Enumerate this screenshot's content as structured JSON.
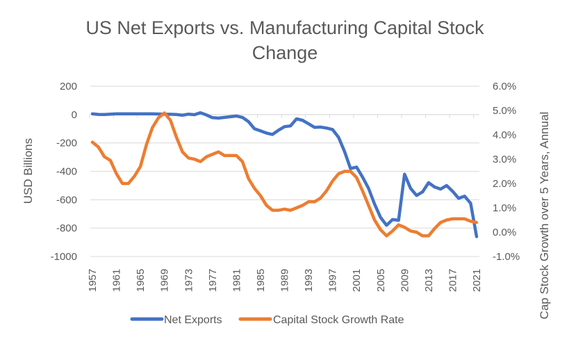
{
  "chart_data": {
    "type": "line",
    "title": [
      "US Net Exports vs. Manufacturing Capital Stock",
      "Change"
    ],
    "xlabel": "",
    "ylabel": "USD Billions",
    "y2label": "Cap Stock Growth over 5 Years, Annual",
    "ylim": [
      -1000,
      200
    ],
    "y2lim": [
      -1.0,
      6.0
    ],
    "yticks": [
      "200",
      "0",
      "-200",
      "-400",
      "-600",
      "-800",
      "-1000"
    ],
    "y2ticks": [
      "6.0%",
      "5.0%",
      "4.0%",
      "3.0%",
      "2.0%",
      "1.0%",
      "0.0%",
      "-1.0%"
    ],
    "xticks": [
      "1957",
      "1961",
      "1965",
      "1969",
      "1973",
      "1977",
      "1981",
      "1985",
      "1989",
      "1993",
      "1997",
      "2001",
      "2005",
      "2009",
      "2013",
      "2017",
      "2021"
    ],
    "grid": true,
    "legend_position": "bottom",
    "x": [
      1957,
      1958,
      1959,
      1960,
      1961,
      1962,
      1963,
      1964,
      1965,
      1966,
      1967,
      1968,
      1969,
      1970,
      1971,
      1972,
      1973,
      1974,
      1975,
      1976,
      1977,
      1978,
      1979,
      1980,
      1981,
      1982,
      1983,
      1984,
      1985,
      1986,
      1987,
      1988,
      1989,
      1990,
      1991,
      1992,
      1993,
      1994,
      1995,
      1996,
      1997,
      1998,
      1999,
      2000,
      2001,
      2002,
      2003,
      2004,
      2005,
      2006,
      2007,
      2008,
      2009,
      2010,
      2011,
      2012,
      2013,
      2014,
      2015,
      2016,
      2017,
      2018,
      2019,
      2020,
      2021
    ],
    "series": [
      {
        "name": "Net Exports",
        "axis": "left",
        "color": "#4472C4",
        "values": [
          5,
          1,
          0,
          3,
          5,
          5,
          5,
          5,
          5,
          5,
          5,
          4,
          2,
          2,
          0,
          -4,
          3,
          -1,
          13,
          -3,
          -22,
          -25,
          -20,
          -15,
          -10,
          -20,
          -50,
          -100,
          -115,
          -130,
          -140,
          -110,
          -85,
          -80,
          -30,
          -40,
          -65,
          -90,
          -88,
          -95,
          -105,
          -160,
          -260,
          -380,
          -370,
          -440,
          -520,
          -630,
          -725,
          -780,
          -740,
          -745,
          -420,
          -520,
          -570,
          -545,
          -480,
          -510,
          -525,
          -500,
          -540,
          -590,
          -575,
          -625,
          -860
        ]
      },
      {
        "name": "Capital Stock Growth Rate",
        "axis": "right",
        "color": "#ED7D31",
        "values": [
          3.7,
          3.5,
          3.1,
          2.95,
          2.4,
          2.0,
          2.0,
          2.3,
          2.7,
          3.6,
          4.3,
          4.7,
          4.9,
          4.6,
          3.9,
          3.3,
          3.05,
          3.0,
          2.9,
          3.1,
          3.2,
          3.3,
          3.15,
          3.15,
          3.15,
          2.9,
          2.2,
          1.8,
          1.5,
          1.1,
          0.9,
          0.9,
          0.95,
          0.9,
          1.0,
          1.1,
          1.25,
          1.25,
          1.4,
          1.7,
          2.1,
          2.4,
          2.5,
          2.5,
          2.25,
          1.7,
          1.1,
          0.5,
          0.1,
          -0.15,
          0.05,
          0.3,
          0.2,
          0.05,
          0.0,
          -0.15,
          -0.15,
          0.15,
          0.4,
          0.5,
          0.55,
          0.55,
          0.55,
          0.45,
          0.4
        ]
      }
    ]
  }
}
